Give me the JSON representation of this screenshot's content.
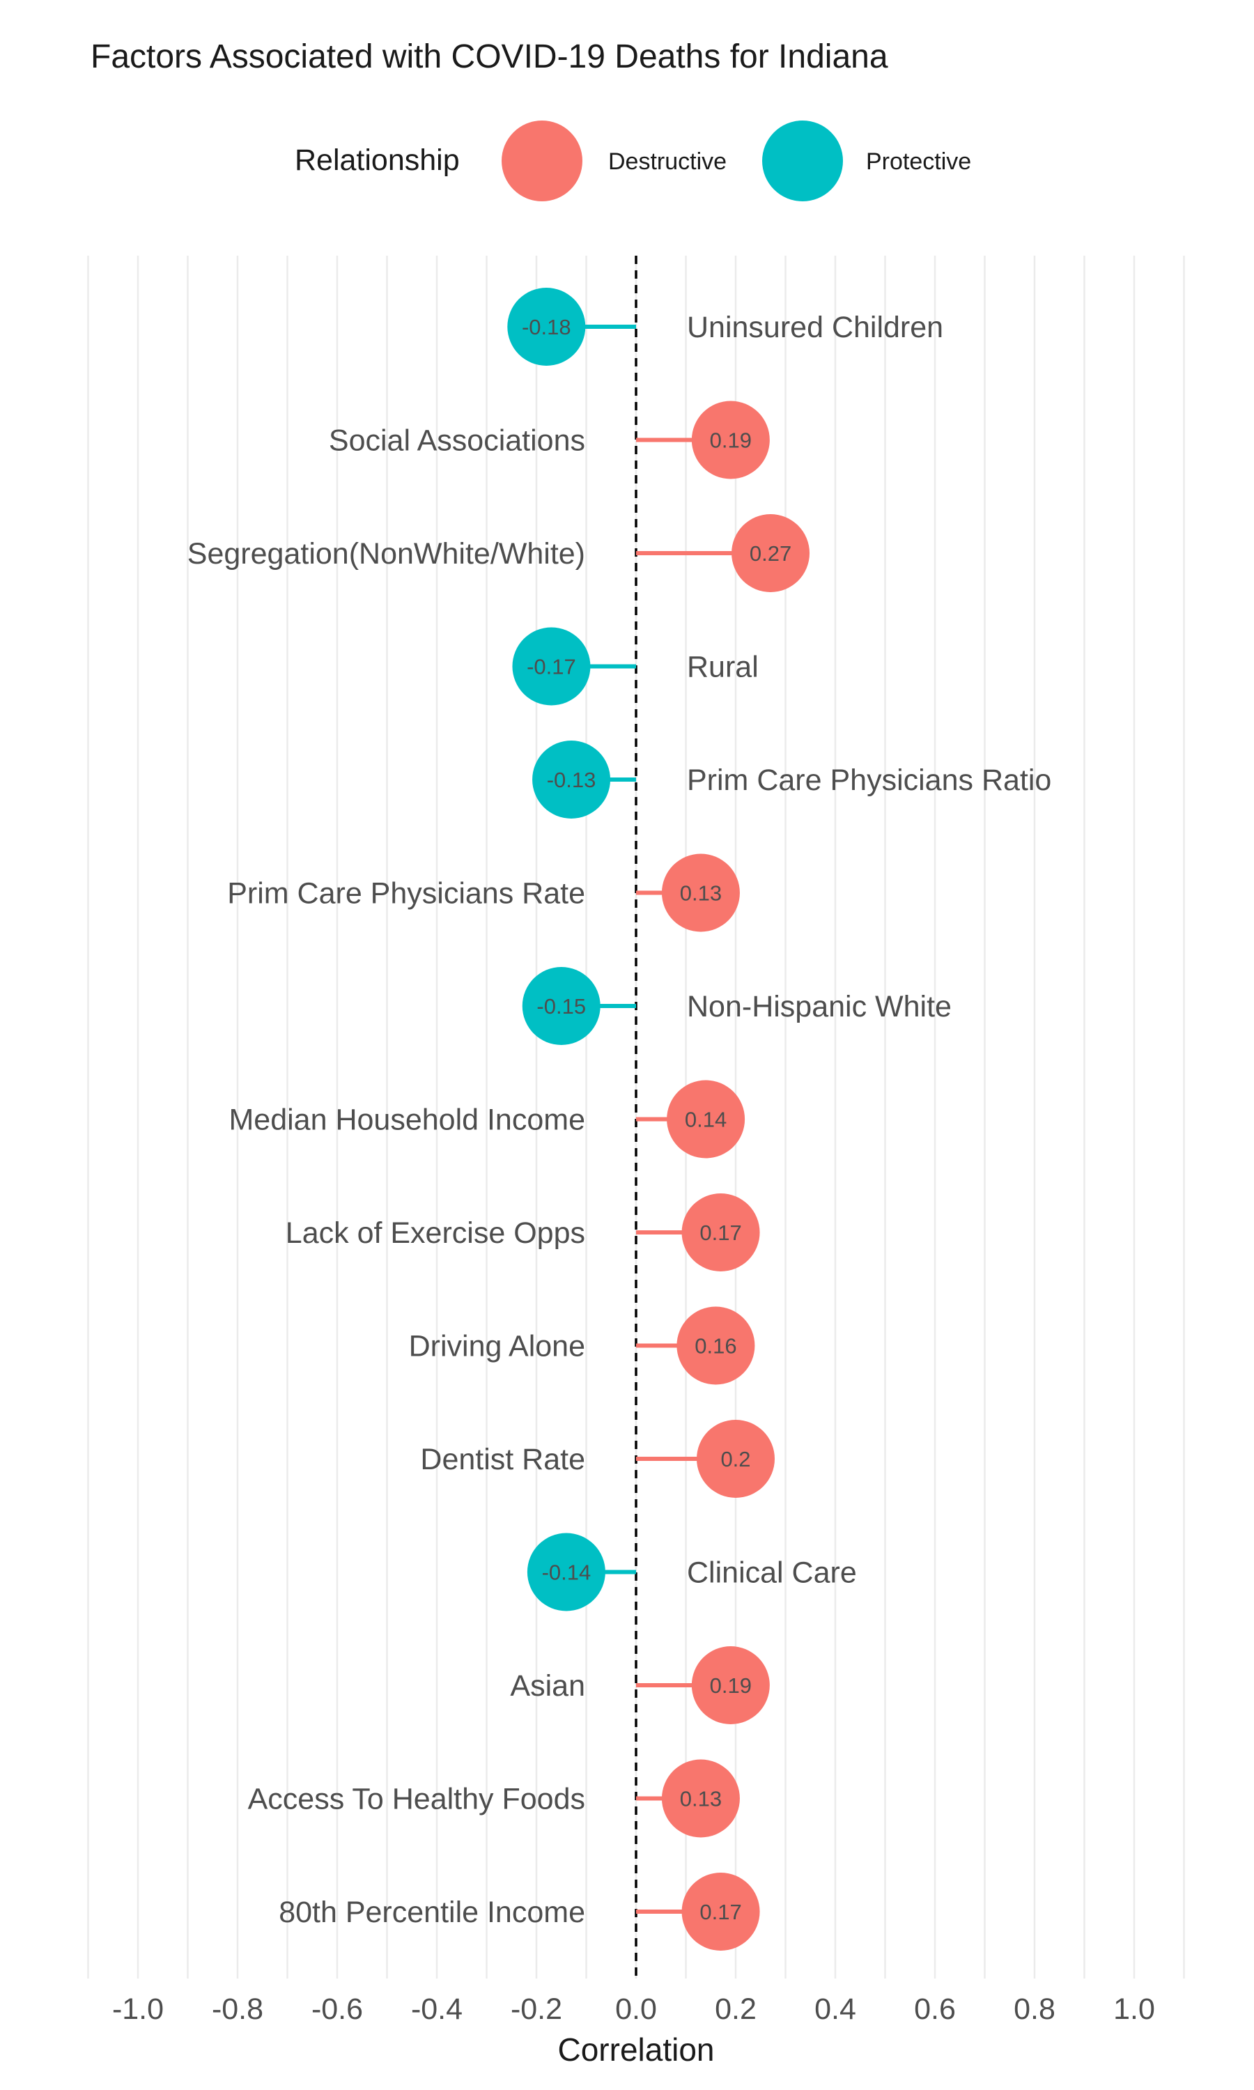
{
  "chart_data": {
    "type": "lollipop",
    "title": "Factors Associated with COVID-19 Deaths for Indiana",
    "xlabel": "Correlation",
    "ylabel": "",
    "xlim": [
      -1.1,
      1.1
    ],
    "x_ticks": [
      "-1.0",
      "-0.8",
      "-0.6",
      "-0.4",
      "-0.2",
      "0.0",
      "0.2",
      "0.4",
      "0.6",
      "0.8",
      "1.0"
    ],
    "x_tick_values": [
      -1.0,
      -0.8,
      -0.6,
      -0.4,
      -0.2,
      0.0,
      0.2,
      0.4,
      0.6,
      0.8,
      1.0
    ],
    "grid": true,
    "reference_line": 0,
    "legend": {
      "title": "Relationship",
      "position": "top",
      "entries": [
        {
          "name": "Destructive",
          "color": "#F8766D"
        },
        {
          "name": "Protective",
          "color": "#00BFC4"
        }
      ]
    },
    "data": [
      {
        "label": "Uninsured Children",
        "value": -0.18,
        "value_label": "-0.18",
        "relationship": "Protective"
      },
      {
        "label": "Social Associations",
        "value": 0.19,
        "value_label": "0.19",
        "relationship": "Destructive"
      },
      {
        "label": "Segregation(NonWhite/White)",
        "value": 0.27,
        "value_label": "0.27",
        "relationship": "Destructive"
      },
      {
        "label": "Rural",
        "value": -0.17,
        "value_label": "-0.17",
        "relationship": "Protective"
      },
      {
        "label": "Prim Care Physicians Ratio",
        "value": -0.13,
        "value_label": "-0.13",
        "relationship": "Protective"
      },
      {
        "label": "Prim Care Physicians Rate",
        "value": 0.13,
        "value_label": "0.13",
        "relationship": "Destructive"
      },
      {
        "label": "Non-Hispanic White",
        "value": -0.15,
        "value_label": "-0.15",
        "relationship": "Protective"
      },
      {
        "label": "Median Household Income",
        "value": 0.14,
        "value_label": "0.14",
        "relationship": "Destructive"
      },
      {
        "label": "Lack of Exercise Opps",
        "value": 0.17,
        "value_label": "0.17",
        "relationship": "Destructive"
      },
      {
        "label": "Driving Alone",
        "value": 0.16,
        "value_label": "0.16",
        "relationship": "Destructive"
      },
      {
        "label": "Dentist Rate",
        "value": 0.2,
        "value_label": "0.2",
        "relationship": "Destructive"
      },
      {
        "label": "Clinical Care",
        "value": -0.14,
        "value_label": "-0.14",
        "relationship": "Protective"
      },
      {
        "label": "Asian",
        "value": 0.19,
        "value_label": "0.19",
        "relationship": "Destructive"
      },
      {
        "label": "Access To Healthy Foods",
        "value": 0.13,
        "value_label": "0.13",
        "relationship": "Destructive"
      },
      {
        "label": "80th Percentile Income",
        "value": 0.17,
        "value_label": "0.17",
        "relationship": "Destructive"
      }
    ]
  }
}
